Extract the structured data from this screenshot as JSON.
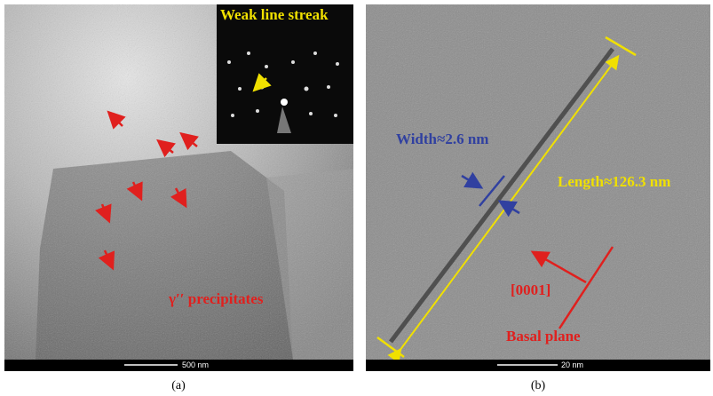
{
  "panels": [
    {
      "label": "(a)",
      "scale_bar": "500 nm",
      "inset_annotation": "Weak line streak",
      "annotation": "γ′′ precipitates"
    },
    {
      "label": "(b)",
      "scale_bar": "20 nm",
      "width_annotation": "Width≈2.6 nm",
      "length_annotation": "Length≈126.3 nm",
      "direction_annotation": "[0001]",
      "plane_annotation": "Basal plane"
    }
  ]
}
